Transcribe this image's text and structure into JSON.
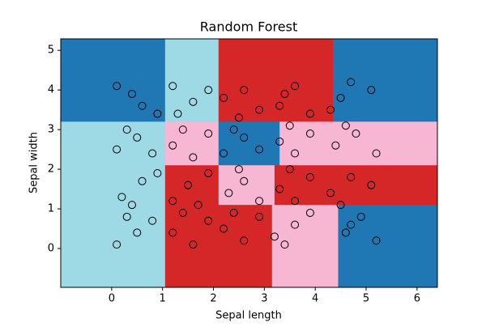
{
  "chart_data": {
    "type": "scatter",
    "title": "Random Forest",
    "xlabel": "Sepal length",
    "ylabel": "Sepal width",
    "x": [
      0.1,
      0.5,
      0.8,
      0.3,
      0.2,
      0.6,
      0.9,
      0.4,
      0.1,
      0.5,
      0.8,
      0.3,
      0.1,
      0.6,
      0.9,
      0.4,
      1.2,
      1.6,
      1.9,
      1.4,
      1.2,
      1.5,
      1.9,
      1.7,
      1.2,
      1.6,
      1.9,
      1.4,
      1.2,
      1.6,
      1.9,
      1.3,
      2.2,
      2.6,
      2.9,
      2.4,
      2.3,
      2.6,
      2.9,
      2.5,
      2.2,
      2.6,
      2.9,
      2.4,
      2.2,
      2.6,
      2.9,
      2.5,
      3.2,
      3.6,
      3.9,
      3.4,
      3.3,
      3.6,
      3.9,
      3.5,
      3.3,
      3.6,
      3.9,
      3.5,
      3.3,
      3.6,
      3.9,
      3.4,
      4.6,
      4.9,
      5.2,
      4.7,
      4.3,
      4.7,
      5.1,
      4.5,
      4.4,
      4.8,
      5.2,
      4.6,
      4.3,
      4.7,
      5.1,
      4.5
    ],
    "y": [
      0.1,
      0.4,
      0.7,
      0.8,
      1.3,
      1.7,
      1.9,
      1.1,
      2.5,
      2.8,
      2.4,
      3.0,
      4.1,
      3.6,
      3.4,
      3.9,
      0.4,
      0.1,
      0.7,
      0.9,
      1.2,
      1.6,
      1.9,
      1.1,
      2.6,
      2.3,
      2.9,
      3.0,
      4.1,
      3.7,
      4.0,
      3.4,
      0.5,
      0.2,
      0.8,
      0.9,
      1.4,
      1.7,
      1.2,
      2.0,
      2.4,
      2.8,
      2.5,
      3.0,
      3.8,
      4.0,
      3.5,
      3.3,
      0.3,
      0.6,
      0.9,
      0.1,
      1.5,
      1.2,
      1.8,
      2.0,
      2.7,
      2.4,
      2.9,
      3.1,
      3.6,
      4.1,
      3.4,
      3.9,
      0.4,
      0.8,
      0.2,
      0.6,
      1.4,
      1.8,
      1.6,
      1.1,
      2.6,
      2.9,
      2.4,
      3.1,
      3.5,
      4.2,
      4.0,
      3.8
    ],
    "marker_edge_color": "#000000",
    "xlim": [
      -1,
      6.4
    ],
    "ylim": [
      -0.98,
      5.29
    ],
    "xticks": [
      0,
      1,
      2,
      3,
      4,
      5,
      6
    ],
    "yticks": [
      0,
      1,
      2,
      3,
      4,
      5
    ],
    "regions": [
      {
        "x": [
          -1,
          1.05
        ],
        "y": [
          3.2,
          5.29
        ],
        "color": "#1f77b4"
      },
      {
        "x": [
          1.05,
          2.1
        ],
        "y": [
          3.2,
          5.29
        ],
        "color": "#9edae5"
      },
      {
        "x": [
          2.1,
          4.35
        ],
        "y": [
          3.2,
          5.29
        ],
        "color": "#d62728"
      },
      {
        "x": [
          4.35,
          6.4
        ],
        "y": [
          3.2,
          5.29
        ],
        "color": "#1f77b4"
      },
      {
        "x": [
          -1,
          1.05
        ],
        "y": [
          -0.98,
          3.2
        ],
        "color": "#9edae5"
      },
      {
        "x": [
          1.05,
          2.1
        ],
        "y": [
          2.1,
          3.2
        ],
        "color": "#f7b6d2"
      },
      {
        "x": [
          2.1,
          3.3
        ],
        "y": [
          2.1,
          3.2
        ],
        "color": "#1f77b4"
      },
      {
        "x": [
          3.3,
          6.4
        ],
        "y": [
          2.1,
          3.2
        ],
        "color": "#f7b6d2"
      },
      {
        "x": [
          1.05,
          2.1
        ],
        "y": [
          1.1,
          2.1
        ],
        "color": "#d62728"
      },
      {
        "x": [
          2.1,
          3.2
        ],
        "y": [
          1.1,
          2.1
        ],
        "color": "#f7b6d2"
      },
      {
        "x": [
          3.2,
          6.4
        ],
        "y": [
          1.1,
          2.1
        ],
        "color": "#d62728"
      },
      {
        "x": [
          1.05,
          3.15
        ],
        "y": [
          -0.98,
          1.1
        ],
        "color": "#d62728"
      },
      {
        "x": [
          3.15,
          4.45
        ],
        "y": [
          -0.98,
          1.1
        ],
        "color": "#f7b6d2"
      },
      {
        "x": [
          4.45,
          6.4
        ],
        "y": [
          -0.98,
          1.1
        ],
        "color": "#1f77b4"
      }
    ]
  }
}
